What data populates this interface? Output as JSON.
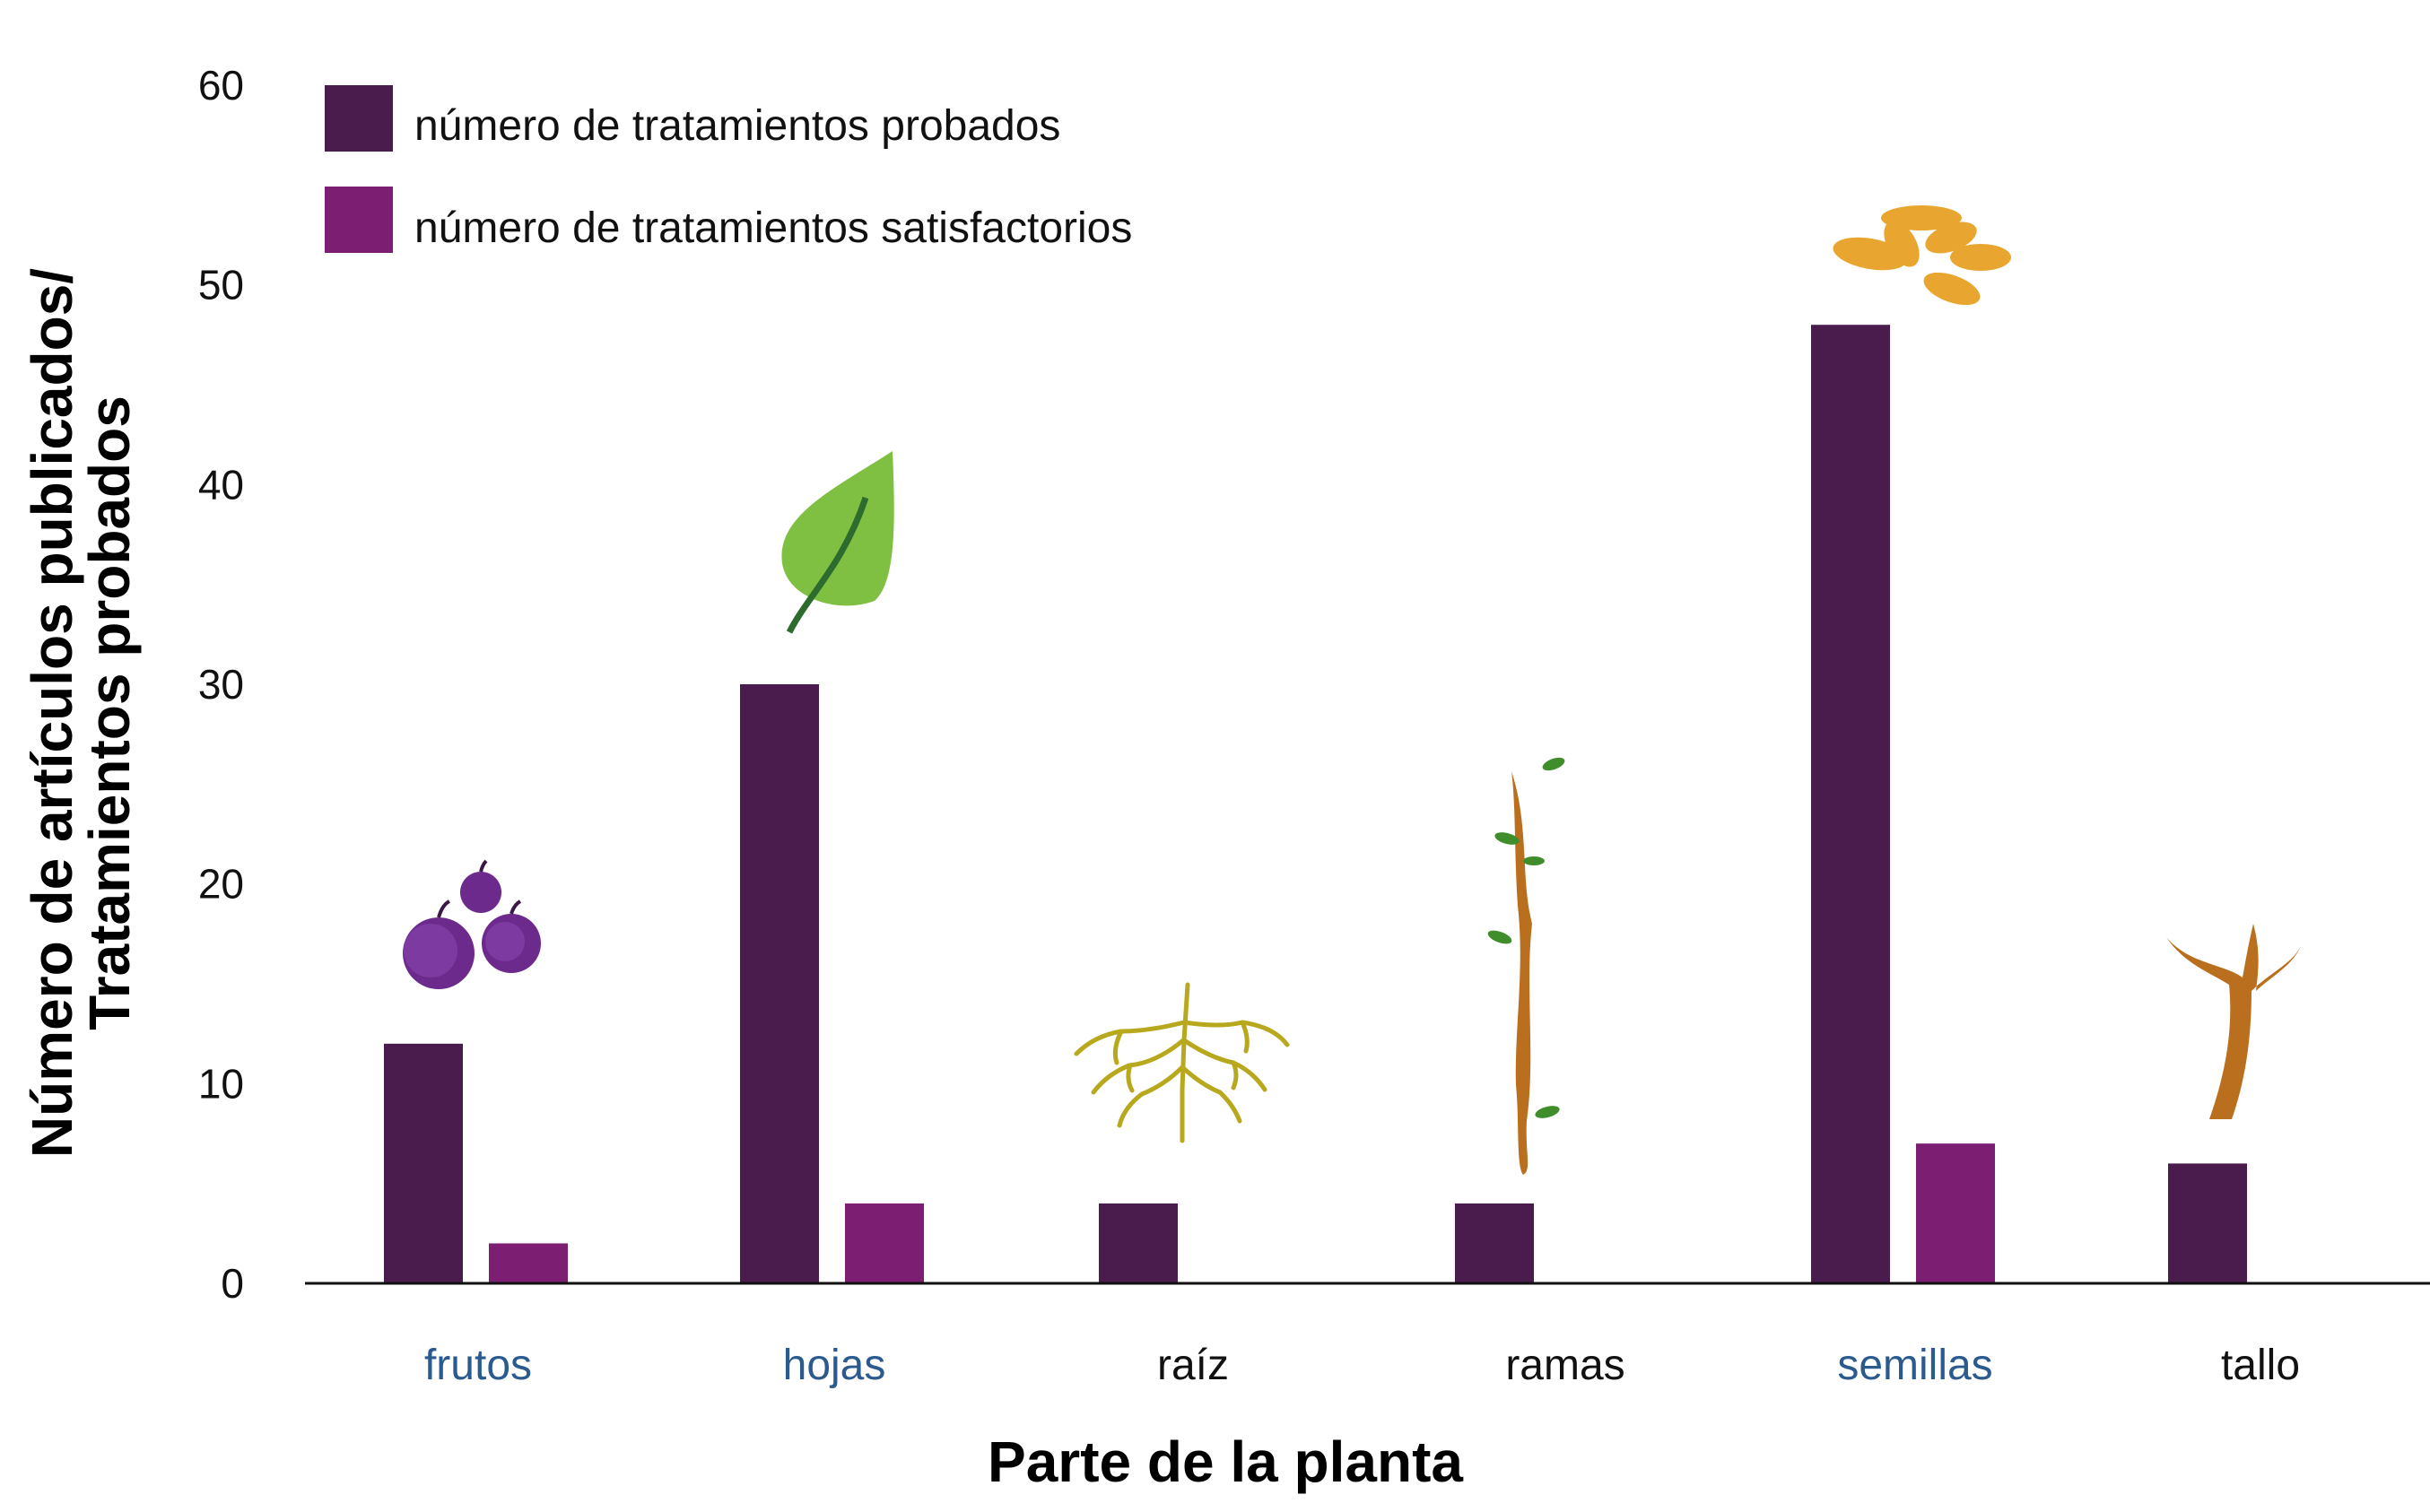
{
  "chart_data": {
    "type": "bar",
    "categories": [
      "frutos",
      "hojas",
      "raíz",
      "ramas",
      "semillas",
      "tallo"
    ],
    "category_colors": [
      "#2b5a8e",
      "#2b5a8e",
      "#111111",
      "#111111",
      "#2b5a8e",
      "#111111"
    ],
    "series": [
      {
        "name": "número de tratamientos probados",
        "color": "#4a1c4e",
        "values": [
          12,
          30,
          4,
          4,
          48,
          6
        ]
      },
      {
        "name": "número de tratamientos satisfactorios",
        "color": "#7c1f73",
        "values": [
          2,
          4,
          0,
          0,
          7,
          0
        ]
      }
    ],
    "xlabel": "Parte de la planta",
    "ylabel_line1": "Número de artículos publicados/",
    "ylabel_line2": "Tratamientos probados",
    "ylim": [
      0,
      60
    ],
    "yticks": [
      0,
      10,
      20,
      30,
      40,
      50,
      60
    ],
    "legend_position": "top-left",
    "grid": false,
    "category_icons": [
      "plums-icon",
      "leaf-icon",
      "roots-icon",
      "branch-icon",
      "seeds-icon",
      "trunk-icon"
    ]
  }
}
